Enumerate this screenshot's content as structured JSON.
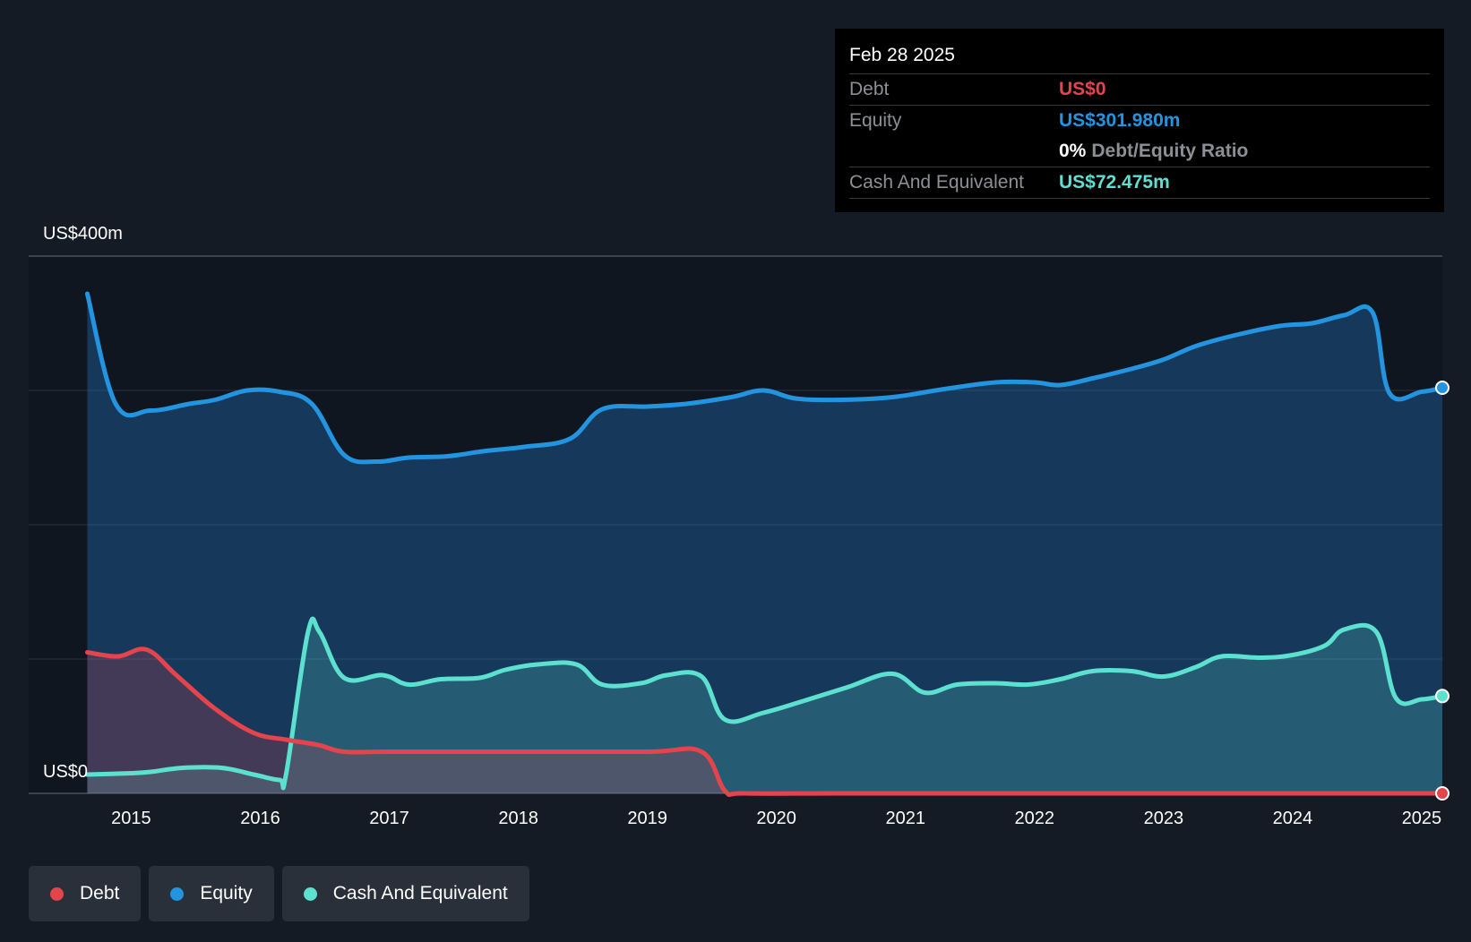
{
  "tooltip": {
    "date": "Feb 28 2025",
    "debt_label": "Debt",
    "debt_value": "US$0",
    "equity_label": "Equity",
    "equity_value": "US$301.980m",
    "ratio_value": "0%",
    "ratio_label": "Debt/Equity Ratio",
    "cash_label": "Cash And Equivalent",
    "cash_value": "US$72.475m"
  },
  "legend": [
    {
      "label": "Debt",
      "color": "#e5444c"
    },
    {
      "label": "Equity",
      "color": "#2394e0"
    },
    {
      "label": "Cash And Equivalent",
      "color": "#5ce0d0"
    }
  ],
  "chart_data": {
    "type": "area",
    "y_top_label": "US$400m",
    "y_bottom_label": "US$0",
    "ylim": [
      0,
      400
    ],
    "xlim": [
      2014.65,
      2025.16
    ],
    "x_ticks": [
      "2015",
      "2016",
      "2017",
      "2018",
      "2019",
      "2020",
      "2021",
      "2022",
      "2023",
      "2024",
      "2025"
    ],
    "grid": true,
    "legend_position": "bottom-left",
    "series": [
      {
        "name": "Debt",
        "color": "#e5444c",
        "points": [
          [
            2014.66,
            105
          ],
          [
            2014.9,
            102
          ],
          [
            2015.12,
            107
          ],
          [
            2015.35,
            88
          ],
          [
            2015.65,
            63
          ],
          [
            2015.95,
            45
          ],
          [
            2016.2,
            40
          ],
          [
            2016.45,
            36
          ],
          [
            2016.65,
            31
          ],
          [
            2017.0,
            31
          ],
          [
            2018.0,
            31
          ],
          [
            2019.0,
            31
          ],
          [
            2019.42,
            31
          ],
          [
            2019.6,
            2
          ],
          [
            2019.75,
            0
          ],
          [
            2020.5,
            0
          ],
          [
            2021.5,
            0
          ],
          [
            2022.5,
            0
          ],
          [
            2023.5,
            0
          ],
          [
            2024.5,
            0
          ],
          [
            2025.16,
            0
          ]
        ]
      },
      {
        "name": "Equity",
        "color": "#2394e0",
        "points": [
          [
            2014.66,
            372
          ],
          [
            2014.88,
            290
          ],
          [
            2015.15,
            285
          ],
          [
            2015.45,
            290
          ],
          [
            2015.65,
            293
          ],
          [
            2015.9,
            300
          ],
          [
            2016.15,
            299
          ],
          [
            2016.4,
            290
          ],
          [
            2016.65,
            252
          ],
          [
            2016.9,
            247
          ],
          [
            2017.15,
            250
          ],
          [
            2017.45,
            251
          ],
          [
            2017.75,
            255
          ],
          [
            2018.05,
            258
          ],
          [
            2018.4,
            264
          ],
          [
            2018.65,
            286
          ],
          [
            2019.0,
            288
          ],
          [
            2019.3,
            290
          ],
          [
            2019.65,
            295
          ],
          [
            2019.9,
            300
          ],
          [
            2020.15,
            294
          ],
          [
            2020.5,
            293
          ],
          [
            2020.9,
            295
          ],
          [
            2021.3,
            301
          ],
          [
            2021.7,
            306
          ],
          [
            2022.0,
            306
          ],
          [
            2022.2,
            304
          ],
          [
            2022.45,
            309
          ],
          [
            2022.75,
            316
          ],
          [
            2023.0,
            323
          ],
          [
            2023.25,
            333
          ],
          [
            2023.55,
            341
          ],
          [
            2023.9,
            348
          ],
          [
            2024.15,
            350
          ],
          [
            2024.4,
            356
          ],
          [
            2024.62,
            358
          ],
          [
            2024.75,
            298
          ],
          [
            2025.0,
            299
          ],
          [
            2025.16,
            301.98
          ]
        ]
      },
      {
        "name": "Cash And Equivalent",
        "color": "#5ce0d0",
        "points": [
          [
            2014.66,
            14
          ],
          [
            2015.0,
            15
          ],
          [
            2015.15,
            16
          ],
          [
            2015.4,
            19
          ],
          [
            2015.7,
            19
          ],
          [
            2015.95,
            14
          ],
          [
            2016.15,
            10
          ],
          [
            2016.2,
            14
          ],
          [
            2016.37,
            120
          ],
          [
            2016.46,
            120
          ],
          [
            2016.65,
            86
          ],
          [
            2016.95,
            88
          ],
          [
            2017.15,
            81
          ],
          [
            2017.4,
            85
          ],
          [
            2017.7,
            86
          ],
          [
            2017.9,
            92
          ],
          [
            2018.15,
            96
          ],
          [
            2018.45,
            96
          ],
          [
            2018.65,
            81
          ],
          [
            2018.95,
            82
          ],
          [
            2019.15,
            88
          ],
          [
            2019.42,
            87
          ],
          [
            2019.6,
            55
          ],
          [
            2019.9,
            60
          ],
          [
            2020.25,
            70
          ],
          [
            2020.55,
            79
          ],
          [
            2020.9,
            89
          ],
          [
            2021.15,
            75
          ],
          [
            2021.4,
            81
          ],
          [
            2021.7,
            82
          ],
          [
            2021.95,
            81
          ],
          [
            2022.2,
            85
          ],
          [
            2022.45,
            91
          ],
          [
            2022.75,
            91
          ],
          [
            2023.0,
            87
          ],
          [
            2023.25,
            94
          ],
          [
            2023.45,
            102
          ],
          [
            2023.75,
            101
          ],
          [
            2024.0,
            103
          ],
          [
            2024.25,
            110
          ],
          [
            2024.4,
            122
          ],
          [
            2024.65,
            120
          ],
          [
            2024.8,
            71
          ],
          [
            2025.0,
            70
          ],
          [
            2025.16,
            72.475
          ]
        ]
      }
    ]
  }
}
